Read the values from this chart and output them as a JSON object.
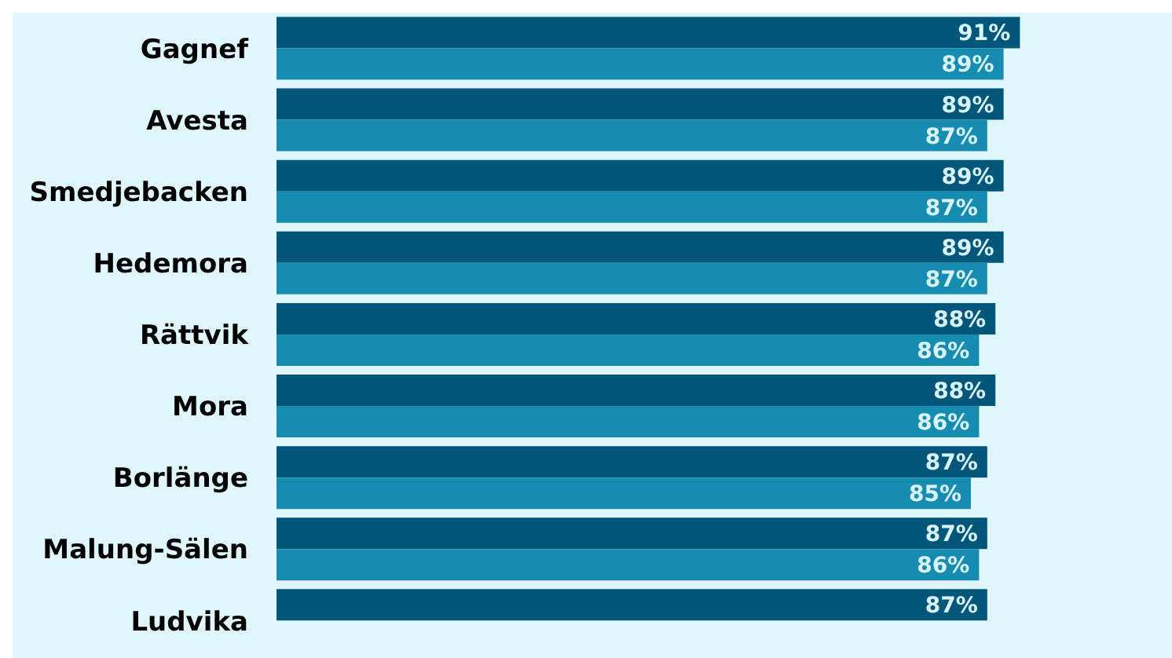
{
  "chart_data": {
    "type": "bar",
    "orientation": "horizontal",
    "categories": [
      "Gagnef",
      "Avesta",
      "Smedjebacken",
      "Hedemora",
      "Rättvik",
      "Mora",
      "Borlänge",
      "Malung-Sälen",
      "Ludvika"
    ],
    "series": [
      {
        "color": "#02567a",
        "values": [
          91,
          89,
          89,
          89,
          88,
          88,
          87,
          87,
          87
        ],
        "value_labels": [
          "91%",
          "89%",
          "89%",
          "89%",
          "88%",
          "88%",
          "87%",
          "87%",
          "87%"
        ]
      },
      {
        "color": "#168db0",
        "values": [
          89,
          87,
          87,
          87,
          86,
          86,
          85,
          86,
          null
        ],
        "value_labels": [
          "89%",
          "87%",
          "87%",
          "87%",
          "86%",
          "86%",
          "85%",
          "86%",
          null
        ]
      }
    ],
    "tick_labels": "y",
    "legend": false
  }
}
